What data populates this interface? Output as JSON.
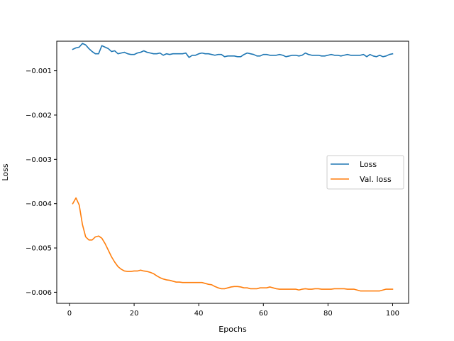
{
  "chart_data": {
    "type": "line",
    "title": "",
    "xlabel": "Epochs",
    "ylabel": "Loss",
    "xlim": [
      -3.95,
      104.95
    ],
    "ylim": [
      -0.00625,
      -0.000333
    ],
    "xticks": [
      0,
      20,
      40,
      60,
      80,
      100
    ],
    "xtick_labels": [
      "0",
      "20",
      "40",
      "60",
      "80",
      "100"
    ],
    "yticks": [
      -0.006,
      -0.005,
      -0.004,
      -0.003,
      -0.002,
      -0.001
    ],
    "ytick_labels": [
      "−0.006",
      "−0.005",
      "−0.004",
      "−0.003",
      "−0.002",
      "−0.001"
    ],
    "grid": false,
    "legend_position": "center-right",
    "series": [
      {
        "name": "Loss",
        "color": "#1f77b4",
        "x_start": 1,
        "x_step": 1,
        "values": [
          -0.000517,
          -0.000483,
          -0.000467,
          -0.000383,
          -0.000417,
          -0.0005,
          -0.000567,
          -0.000617,
          -0.000617,
          -0.000433,
          -0.000467,
          -0.0005,
          -0.000567,
          -0.00055,
          -0.000617,
          -0.0006,
          -0.000583,
          -0.000617,
          -0.000633,
          -0.000633,
          -0.0006,
          -0.000583,
          -0.00055,
          -0.000583,
          -0.0006,
          -0.000617,
          -0.000617,
          -0.0006,
          -0.00065,
          -0.000617,
          -0.000633,
          -0.000617,
          -0.000617,
          -0.000617,
          -0.000617,
          -0.0006,
          -0.0007,
          -0.00065,
          -0.00065,
          -0.000617,
          -0.0006,
          -0.000617,
          -0.000617,
          -0.000633,
          -0.00065,
          -0.000633,
          -0.000633,
          -0.000683,
          -0.000667,
          -0.000667,
          -0.000667,
          -0.000683,
          -0.000683,
          -0.000633,
          -0.0006,
          -0.000617,
          -0.000633,
          -0.000667,
          -0.000667,
          -0.000633,
          -0.000633,
          -0.00065,
          -0.00065,
          -0.00065,
          -0.000633,
          -0.00065,
          -0.000683,
          -0.000667,
          -0.00065,
          -0.00065,
          -0.000667,
          -0.00065,
          -0.0006,
          -0.000633,
          -0.00065,
          -0.00065,
          -0.00065,
          -0.000667,
          -0.000667,
          -0.00065,
          -0.000633,
          -0.00065,
          -0.00065,
          -0.000667,
          -0.00065,
          -0.000633,
          -0.00065,
          -0.00065,
          -0.00065,
          -0.00065,
          -0.000633,
          -0.000683,
          -0.000633,
          -0.000667,
          -0.000683,
          -0.00065,
          -0.000683,
          -0.000667,
          -0.000633,
          -0.000617
        ]
      },
      {
        "name": "Val. loss",
        "color": "#ff7f0e",
        "x_start": 1,
        "x_step": 1,
        "values": [
          -0.004,
          -0.00387,
          -0.00403,
          -0.00447,
          -0.00475,
          -0.00482,
          -0.00482,
          -0.00475,
          -0.00473,
          -0.00478,
          -0.0049,
          -0.00505,
          -0.0052,
          -0.00532,
          -0.00542,
          -0.00548,
          -0.00552,
          -0.00553,
          -0.00553,
          -0.00552,
          -0.00552,
          -0.0055,
          -0.00552,
          -0.00553,
          -0.00555,
          -0.00558,
          -0.00563,
          -0.00567,
          -0.0057,
          -0.00572,
          -0.00573,
          -0.00575,
          -0.00577,
          -0.00577,
          -0.00578,
          -0.00578,
          -0.00578,
          -0.00578,
          -0.00578,
          -0.00578,
          -0.00578,
          -0.0058,
          -0.00582,
          -0.00583,
          -0.00587,
          -0.0059,
          -0.00592,
          -0.00592,
          -0.0059,
          -0.00588,
          -0.00587,
          -0.00587,
          -0.00588,
          -0.0059,
          -0.0059,
          -0.00592,
          -0.00592,
          -0.00592,
          -0.0059,
          -0.0059,
          -0.0059,
          -0.00588,
          -0.0059,
          -0.00592,
          -0.00593,
          -0.00593,
          -0.00593,
          -0.00593,
          -0.00593,
          -0.00593,
          -0.00595,
          -0.00593,
          -0.00592,
          -0.00593,
          -0.00593,
          -0.00592,
          -0.00592,
          -0.00593,
          -0.00593,
          -0.00593,
          -0.00593,
          -0.00592,
          -0.00592,
          -0.00592,
          -0.00592,
          -0.00593,
          -0.00593,
          -0.00593,
          -0.00595,
          -0.00597,
          -0.00597,
          -0.00597,
          -0.00597,
          -0.00597,
          -0.00597,
          -0.00597,
          -0.00595,
          -0.00593,
          -0.00593,
          -0.00593
        ]
      }
    ]
  }
}
